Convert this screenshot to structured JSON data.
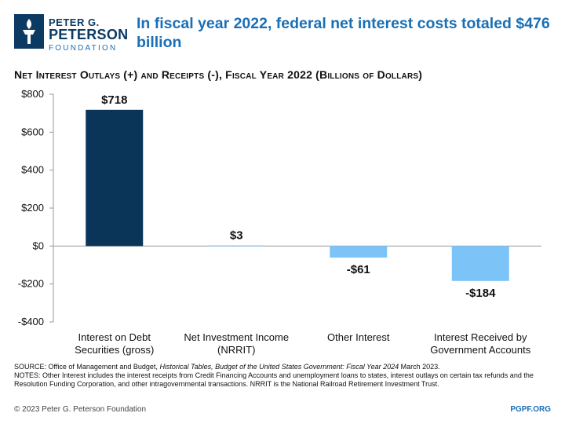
{
  "logo": {
    "line1": "PETER G.",
    "line2": "PETERSON",
    "line3": "FOUNDATION",
    "icon": "torch-logo-icon",
    "color": "#0b3a63"
  },
  "headline": "In fiscal year 2022, federal net interest costs totaled $476 billion",
  "chart_title": "Net Interest Outlays (+) and Receipts (-), Fiscal Year 2022 (Billions of Dollars)",
  "chart_data": {
    "type": "bar",
    "categories": [
      [
        "Interest on Debt",
        "Securities (gross)"
      ],
      [
        "Net Investment Income",
        "(NRRIT)"
      ],
      [
        "Other Interest"
      ],
      [
        "Interest Received by",
        "Government Accounts"
      ]
    ],
    "values": [
      718,
      3,
      -61,
      -184
    ],
    "data_labels": [
      "$718",
      "$3",
      "-$61",
      "-$184"
    ],
    "bar_colors": [
      "#0a3558",
      "#7cc4f8",
      "#7cc4f8",
      "#7cc4f8"
    ],
    "ylim": [
      -400,
      800
    ],
    "yticks": [
      800,
      600,
      400,
      200,
      0,
      -200,
      -400
    ],
    "ytick_labels": [
      "$800",
      "$600",
      "$400",
      "$200",
      "$0",
      "-$200",
      "-$400"
    ],
    "grid": false
  },
  "source": {
    "line1_prefix": "SOURCE: Office of Management and Budget, ",
    "line1_italic": "Historical Tables, Budget of the United States Government: Fiscal Year 2024",
    "line1_suffix": " March 2023.",
    "notes": "NOTES: Other Interest includes the interest receipts from Credit Financing Accounts and unemployment loans to states, interest outlays on certain tax refunds and the Resolution Funding Corporation, and other intragovernmental transactions. NRRIT is the National Railroad Retirement Investment Trust."
  },
  "footer": {
    "copyright": "© 2023 Peter G. Peterson Foundation",
    "site": "PGPF.ORG"
  }
}
